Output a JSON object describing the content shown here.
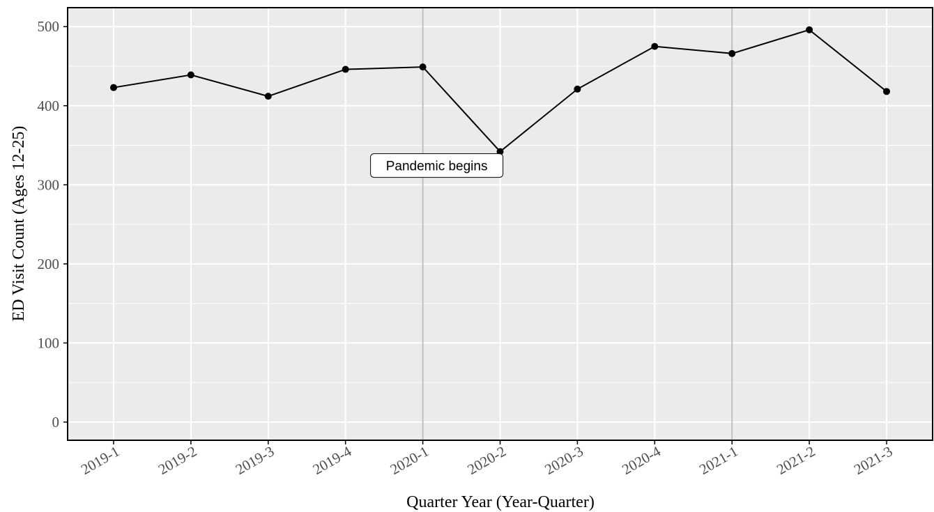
{
  "chart_data": {
    "type": "line",
    "title": "",
    "xlabel": "Quarter Year (Year-Quarter)",
    "ylabel": "ED Visit Count (Ages 12-25)",
    "categories": [
      "2019-1",
      "2019-2",
      "2019-3",
      "2019-4",
      "2020-1",
      "2020-2",
      "2020-3",
      "2020-4",
      "2021-1",
      "2021-2",
      "2021-3"
    ],
    "series": [
      {
        "values": [
          423,
          439,
          412,
          446,
          449,
          342,
          421,
          475,
          466,
          496,
          418
        ]
      }
    ],
    "ylim": [
      -23,
      524
    ],
    "yticks": [
      0,
      100,
      200,
      300,
      400,
      500
    ],
    "grid": true,
    "reference_lines": [
      "2020-1",
      "2021-1"
    ],
    "annotations": [
      {
        "text": "Pandemic begins",
        "x": "2020-1",
        "y": 320
      }
    ],
    "colors": {
      "panel": "#ebebeb",
      "grid": "#ffffff",
      "line": "#000000",
      "reference": "#bfbfbf"
    }
  }
}
